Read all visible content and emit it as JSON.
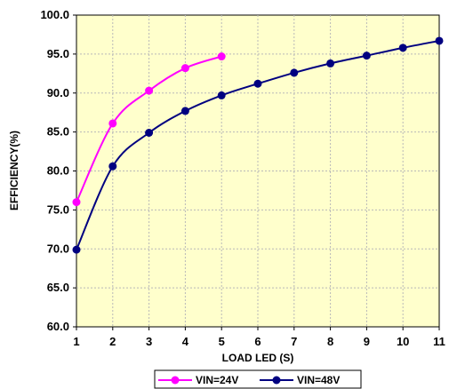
{
  "chart_data": {
    "type": "line",
    "xlabel": "LOAD LED (S)",
    "ylabel": "EFFICIENCY(%)",
    "x_ticks": [
      "1",
      "2",
      "3",
      "4",
      "5",
      "6",
      "7",
      "8",
      "9",
      "10",
      "11"
    ],
    "y_ticks": [
      "60.0",
      "65.0",
      "70.0",
      "75.0",
      "80.0",
      "85.0",
      "90.0",
      "95.0",
      "100.0"
    ],
    "xlim": [
      1,
      11
    ],
    "ylim": [
      60,
      100
    ],
    "grid": true,
    "plot_background": "#ffffcc",
    "grid_color": "#b8b8b8",
    "legend_placement": "bottom",
    "series": [
      {
        "name": "VIN=24V",
        "color": "#ff00ff",
        "marker": "circle",
        "x": [
          1,
          2,
          3,
          4,
          5
        ],
        "values": [
          76.0,
          86.1,
          90.3,
          93.2,
          94.7
        ]
      },
      {
        "name": "VIN=48V",
        "color": "#000080",
        "marker": "circle",
        "x": [
          1,
          2,
          3,
          4,
          5,
          6,
          7,
          8,
          9,
          10,
          11
        ],
        "values": [
          69.9,
          80.6,
          84.9,
          87.7,
          89.7,
          91.2,
          92.6,
          93.8,
          94.8,
          95.8,
          96.7
        ]
      }
    ]
  }
}
